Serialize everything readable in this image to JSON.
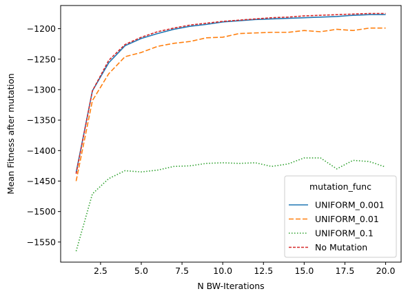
{
  "chart_data": {
    "type": "line",
    "title": "",
    "xlabel": "N BW-Iterations",
    "ylabel": "Mean Fitness after mutation",
    "xlim": [
      0.05,
      20.95
    ],
    "ylim": [
      -1583,
      -1162
    ],
    "x_ticks": [
      2.5,
      5.0,
      7.5,
      10.0,
      12.5,
      15.0,
      17.5,
      20.0
    ],
    "x_tick_labels": [
      "2.5",
      "5.0",
      "7.5",
      "10.0",
      "12.5",
      "15.0",
      "17.5",
      "20.0"
    ],
    "y_ticks": [
      -1550,
      -1500,
      -1450,
      -1400,
      -1350,
      -1300,
      -1250,
      -1200
    ],
    "y_tick_labels": [
      "−1550",
      "−1500",
      "−1450",
      "−1400",
      "−1350",
      "−1300",
      "−1250",
      "−1200"
    ],
    "grid": false,
    "legend": {
      "title": "mutation_func",
      "placement": "lower-right"
    },
    "x": [
      1,
      2,
      3,
      4,
      5,
      6,
      7,
      8,
      9,
      10,
      11,
      12,
      13,
      14,
      15,
      16,
      17,
      18,
      19,
      20
    ],
    "series": [
      {
        "name": "UNIFORM_0.001",
        "color": "#1f77b4",
        "dash": "solid",
        "values": [
          -1436,
          -1302,
          -1256,
          -1228,
          -1216,
          -1208,
          -1201,
          -1196,
          -1193,
          -1189,
          -1187,
          -1185,
          -1184,
          -1183,
          -1182,
          -1181,
          -1180,
          -1178,
          -1177,
          -1177
        ]
      },
      {
        "name": "UNIFORM_0.01",
        "color": "#ff7f0e",
        "dash": "dashed",
        "values": [
          -1450,
          -1318,
          -1274,
          -1246,
          -1239,
          -1229,
          -1224,
          -1221,
          -1215,
          -1214,
          -1208,
          -1207,
          -1206,
          -1206,
          -1203,
          -1205,
          -1201,
          -1203,
          -1199,
          -1199
        ]
      },
      {
        "name": "UNIFORM_0.1",
        "color": "#2ca02c",
        "dash": "dotted",
        "values": [
          -1565,
          -1471,
          -1446,
          -1433,
          -1435,
          -1432,
          -1426,
          -1425,
          -1421,
          -1420,
          -1421,
          -1420,
          -1426,
          -1422,
          -1412,
          -1412,
          -1430,
          -1416,
          -1418,
          -1427
        ]
      },
      {
        "name": "No Mutation",
        "color": "#d62728",
        "dash": "dashed-fine",
        "values": [
          -1438,
          -1302,
          -1252,
          -1226,
          -1214,
          -1205,
          -1199,
          -1194,
          -1191,
          -1188,
          -1186,
          -1184,
          -1182,
          -1181,
          -1179,
          -1178,
          -1177,
          -1176,
          -1175,
          -1175
        ]
      }
    ]
  }
}
